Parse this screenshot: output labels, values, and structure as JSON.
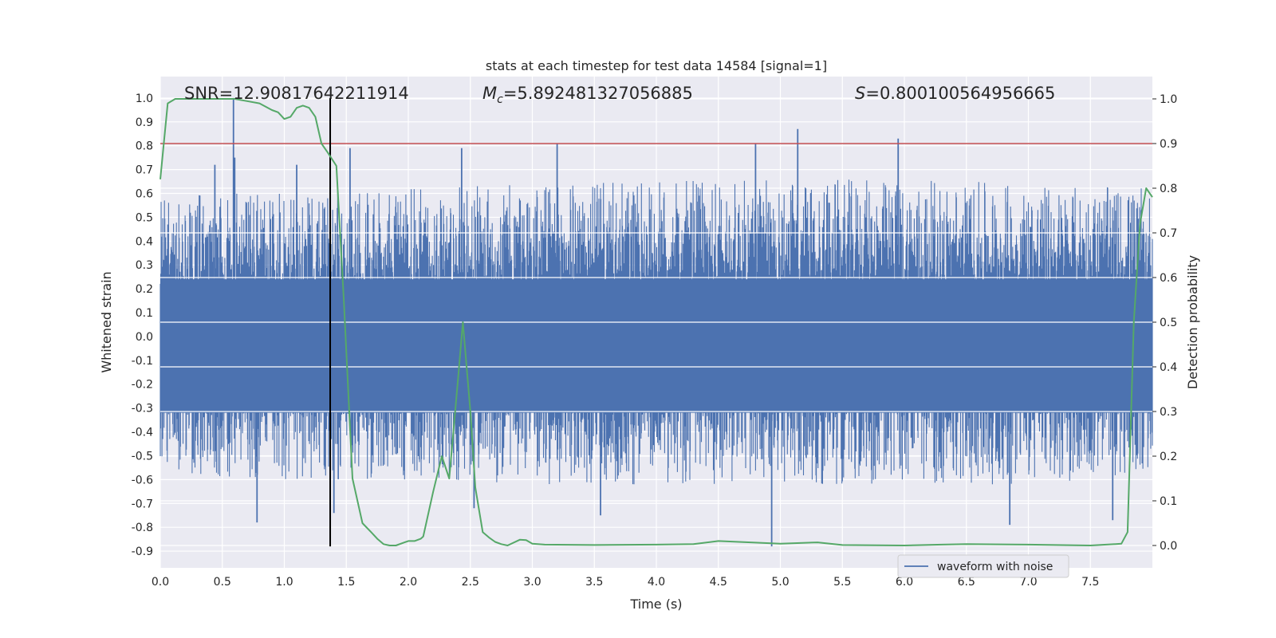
{
  "chart_data": {
    "type": "line",
    "title": "stats at each timestep for test data 14584 [signal=1]",
    "xlabel": "Time (s)",
    "ylabel": "Whitened strain",
    "y2label": "Detection probability",
    "xlim": [
      0.0,
      8.0
    ],
    "ylim": [
      -0.97,
      1.09
    ],
    "y2lim": [
      -0.05,
      1.05
    ],
    "xticks": [
      0.0,
      0.5,
      1.0,
      1.5,
      2.0,
      2.5,
      3.0,
      3.5,
      4.0,
      4.5,
      5.0,
      5.5,
      6.0,
      6.5,
      7.0,
      7.5
    ],
    "yticks": [
      1.0,
      0.9,
      0.8,
      0.7,
      0.6,
      0.5,
      0.4,
      0.3,
      0.2,
      0.1,
      0.0,
      -0.1,
      -0.2,
      -0.3,
      -0.4,
      -0.5,
      -0.6,
      -0.7,
      -0.8,
      -0.9
    ],
    "y2ticks": [
      1.0,
      0.9,
      0.8,
      0.7,
      0.6,
      0.5,
      0.4,
      0.3,
      0.2,
      0.1,
      0.0
    ],
    "annotations": [
      {
        "label": "SNR=12.90817642211914",
        "x": 0.2
      },
      {
        "prefix": "M",
        "sub": "c",
        "label": "=5.892481327056885",
        "x": 2.6
      },
      {
        "prefix": "S",
        "label": "=0.800100564956665",
        "x": 5.6
      }
    ],
    "threshold": {
      "value": 0.9,
      "axis": "right",
      "color": "#c44e52"
    },
    "marker_line": {
      "x": 1.37,
      "color": "#000000"
    },
    "waveform": {
      "name": "waveform with noise",
      "color": "#4c72b0",
      "peaks": [
        {
          "x": 0.59,
          "y": 1.0
        },
        {
          "x": 0.6,
          "y": 0.75
        },
        {
          "x": 0.44,
          "y": 0.72
        },
        {
          "x": 0.78,
          "y": -0.78
        },
        {
          "x": 1.1,
          "y": 0.72
        },
        {
          "x": 1.4,
          "y": -0.74
        },
        {
          "x": 1.53,
          "y": 0.79
        },
        {
          "x": 2.43,
          "y": 0.79
        },
        {
          "x": 2.53,
          "y": -0.72
        },
        {
          "x": 3.2,
          "y": 0.81
        },
        {
          "x": 3.55,
          "y": -0.75
        },
        {
          "x": 4.8,
          "y": 0.81
        },
        {
          "x": 4.93,
          "y": -0.88
        },
        {
          "x": 5.14,
          "y": 0.87
        },
        {
          "x": 5.95,
          "y": 0.83
        },
        {
          "x": 6.85,
          "y": -0.79
        },
        {
          "x": 7.68,
          "y": -0.77
        }
      ],
      "envelope": [
        {
          "x": 0.0,
          "hi": 0.6,
          "lo": -0.58
        },
        {
          "x": 1.0,
          "hi": 0.6,
          "lo": -0.6
        },
        {
          "x": 2.0,
          "hi": 0.62,
          "lo": -0.6
        },
        {
          "x": 3.0,
          "hi": 0.64,
          "lo": -0.62
        },
        {
          "x": 4.0,
          "hi": 0.65,
          "lo": -0.62
        },
        {
          "x": 5.0,
          "hi": 0.66,
          "lo": -0.62
        },
        {
          "x": 6.0,
          "hi": 0.66,
          "lo": -0.62
        },
        {
          "x": 7.0,
          "hi": 0.64,
          "lo": -0.62
        },
        {
          "x": 8.0,
          "hi": 0.62,
          "lo": -0.58
        }
      ]
    },
    "detection_probability": {
      "color": "#55a868",
      "x": [
        0.0,
        0.06,
        0.12,
        0.2,
        0.3,
        0.4,
        0.5,
        0.6,
        0.7,
        0.8,
        0.9,
        0.95,
        1.0,
        1.05,
        1.1,
        1.15,
        1.2,
        1.25,
        1.3,
        1.35,
        1.42,
        1.48,
        1.55,
        1.63,
        1.7,
        1.75,
        1.8,
        1.85,
        1.9,
        2.0,
        2.05,
        2.1,
        2.12,
        2.2,
        2.27,
        2.33,
        2.4,
        2.44,
        2.5,
        2.54,
        2.6,
        2.65,
        2.7,
        2.75,
        2.8,
        2.9,
        2.95,
        3.0,
        3.1,
        3.5,
        4.0,
        4.3,
        4.5,
        5.0,
        5.3,
        5.5,
        6.0,
        6.3,
        6.5,
        7.0,
        7.5,
        7.75,
        7.8,
        7.85,
        7.9,
        7.95,
        8.0
      ],
      "y": [
        0.82,
        0.99,
        1.0,
        1.0,
        1.0,
        1.0,
        1.0,
        1.0,
        0.995,
        0.99,
        0.975,
        0.97,
        0.955,
        0.96,
        0.98,
        0.985,
        0.98,
        0.96,
        0.9,
        0.88,
        0.85,
        0.55,
        0.15,
        0.05,
        0.03,
        0.015,
        0.003,
        0.0,
        0.0,
        0.01,
        0.01,
        0.015,
        0.02,
        0.12,
        0.2,
        0.15,
        0.37,
        0.5,
        0.3,
        0.13,
        0.03,
        0.018,
        0.008,
        0.003,
        0.0,
        0.013,
        0.012,
        0.004,
        0.002,
        0.001,
        0.002,
        0.003,
        0.01,
        0.004,
        0.007,
        0.001,
        0.0,
        0.002,
        0.003,
        0.002,
        0.0,
        0.004,
        0.03,
        0.5,
        0.72,
        0.8,
        0.78
      ]
    },
    "legend": {
      "entries": [
        "waveform with noise"
      ],
      "placement": "lower-right"
    },
    "grid": true
  }
}
